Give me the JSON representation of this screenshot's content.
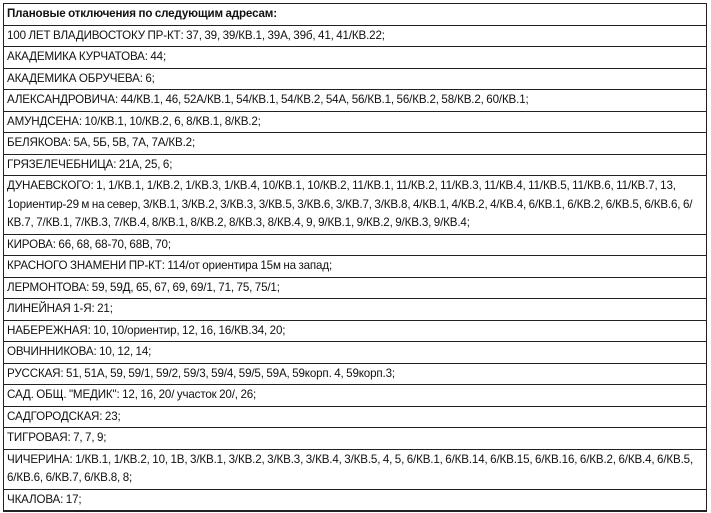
{
  "title": "Плановые отключения по следующим адресам:",
  "rows": [
    "100 ЛЕТ ВЛАДИВОСТОКУ ПР-КТ: 37, 39, 39/КВ.1, 39А, 39б, 41, 41/КВ.22;",
    "АКАДЕМИКА КУРЧАТОВА: 44;",
    "АКАДЕМИКА ОБРУЧЕВА: 6;",
    "АЛЕКСАНДРОВИЧА: 44/КВ.1, 46, 52А/КВ.1, 54/КВ.1, 54/КВ.2, 54А, 56/КВ.1, 56/КВ.2, 58/КВ.2, 60/КВ.1;",
    "АМУНДСЕНА: 10/КВ.1, 10/КВ.2, 6, 8/КВ.1, 8/КВ.2;",
    "БЕЛЯКОВА: 5А, 5Б, 5В, 7А, 7А/КВ.2;",
    "ГРЯЗЕЛЕЧЕБНИЦА: 21А, 25, 6;",
    "ДУНАЕВСКОГО: 1, 1/КВ.1, 1/КВ.2, 1/КВ.3, 1/КВ.4, 10/КВ.1, 10/КВ.2, 11/КВ.1, 11/КВ.2, 11/КВ.3, 11/КВ.4, 11/КВ.5, 11/КВ.6, 11/КВ.7, 13, 1ориентир-29 м на север, 3/КВ.1, 3/КВ.2, 3/КВ.3, 3/КВ.5, 3/КВ.6, 3/КВ.7, 3/КВ.8, 4/КВ.1, 4/КВ.2, 4/КВ.4, 6/КВ.1, 6/КВ.2, 6/КВ.5, 6/КВ.6, 6/КВ.7, 7/КВ.1, 7/КВ.3, 7/КВ.4, 8/КВ.1, 8/КВ.2, 8/КВ.3, 8/КВ.4, 9, 9/КВ.1, 9/КВ.2, 9/КВ.3, 9/КВ.4;",
    "КИРОВА: 66, 68, 68-70, 68В, 70;",
    "КРАСНОГО ЗНАМЕНИ ПР-КТ: 114/от ориентира 15м на запад;",
    "ЛЕРМОНТОВА: 59, 59Д, 65, 67, 69, 69/1, 71, 75, 75/1;",
    "ЛИНЕЙНАЯ 1-Я: 21;",
    "НАБЕРЕЖНАЯ: 10, 10/ориентир, 12, 16, 16/КВ.34, 20;",
    "ОВЧИННИКОВА: 10, 12, 14;",
    "РУССКАЯ: 51, 51А, 59, 59/1, 59/2, 59/3, 59/4, 59/5, 59А, 59корп. 4, 59корп.3;",
    "САД. ОБЩ. \"МЕДИК\": 12, 16, 20/ участок 20/, 26;",
    "САДГОРОДСКАЯ: 23;",
    "ТИГРОВАЯ: 7, 7, 9;",
    "ЧИЧЕРИНА: 1/КВ.1, 1/КВ.2, 10, 1В, 3/КВ.1, 3/КВ.2, 3/КВ.3, 3/КВ.4, 3/КВ.5, 4, 5, 6/КВ.1, 6/КВ.14, 6/КВ.15, 6/КВ.16, 6/КВ.2, 6/КВ.4, 6/КВ.5, 6/КВ.6, 6/КВ.7, 6/КВ.8, 8;",
    "ЧКАЛОВА: 17;"
  ]
}
